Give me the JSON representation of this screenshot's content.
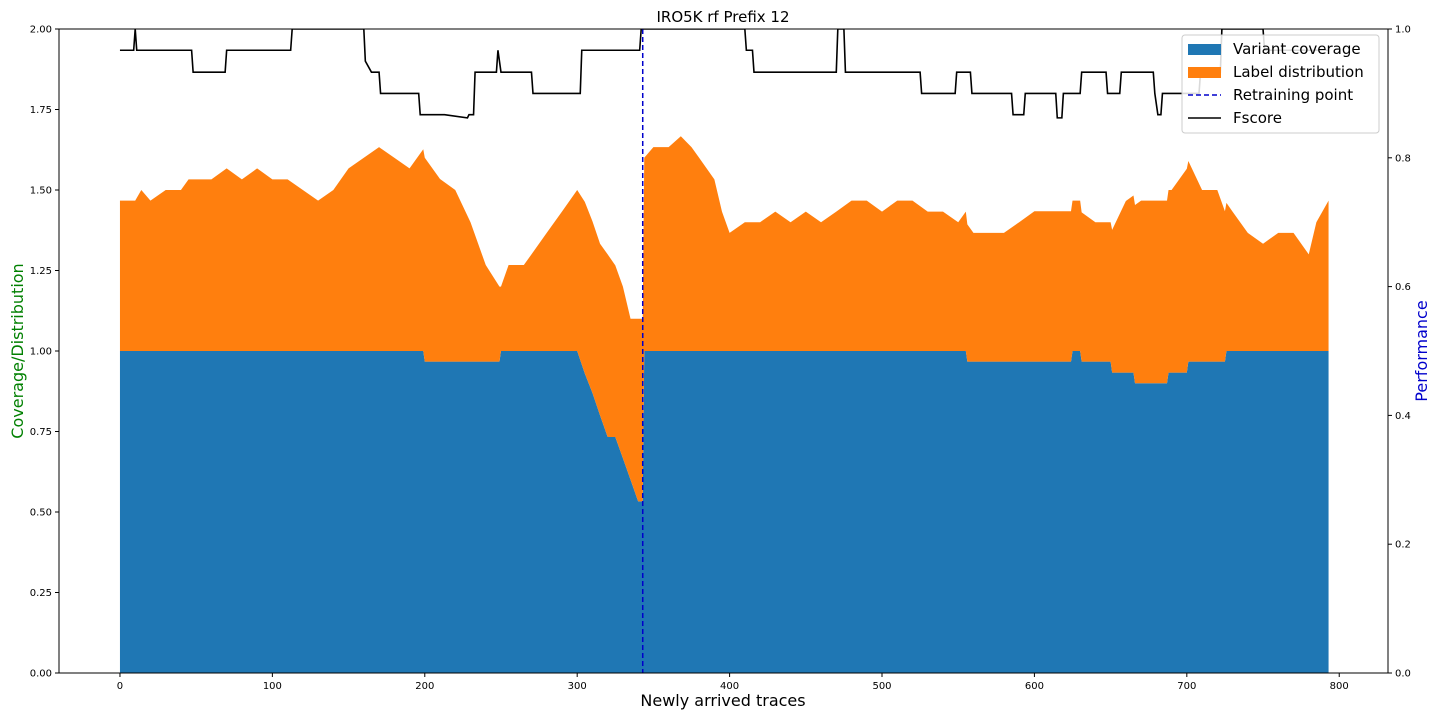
{
  "chart_data": {
    "type": "area",
    "title": "IRO5K rf Prefix 12",
    "xlabel": "Newly arrived traces",
    "ylabel": "Coverage/Distribution",
    "y2label": "Performance",
    "ylabel_color": "#008000",
    "y2label_color": "#0000cc",
    "xlim": [
      -40,
      832
    ],
    "ylim": [
      0,
      2.0
    ],
    "y2lim": [
      0,
      1.0
    ],
    "x_ticks": [
      0,
      100,
      200,
      300,
      400,
      500,
      600,
      700,
      800
    ],
    "y_ticks": [
      "0.00",
      "0.25",
      "0.50",
      "0.75",
      "1.00",
      "1.25",
      "1.50",
      "1.75",
      "2.00"
    ],
    "y2_ticks": [
      "0.0",
      "0.2",
      "0.4",
      "0.6",
      "0.8",
      "1.0"
    ],
    "legend_position": "top-right",
    "retraining_point": 343,
    "series": [
      {
        "name": "Variant coverage",
        "color": "#1f77b4",
        "points": [
          [
            0,
            1.0
          ],
          [
            199,
            1.0
          ],
          [
            200,
            0.967
          ],
          [
            249,
            0.967
          ],
          [
            250,
            1.0
          ],
          [
            300,
            1.0
          ],
          [
            305,
            0.93
          ],
          [
            310,
            0.87
          ],
          [
            315,
            0.8
          ],
          [
            320,
            0.733
          ],
          [
            325,
            0.733
          ],
          [
            330,
            0.667
          ],
          [
            335,
            0.6
          ],
          [
            340,
            0.533
          ],
          [
            343,
            0.533
          ],
          [
            344,
            1.0
          ],
          [
            555,
            1.0
          ],
          [
            556,
            0.967
          ],
          [
            624,
            0.967
          ],
          [
            625,
            1.0
          ],
          [
            630,
            1.0
          ],
          [
            631,
            0.967
          ],
          [
            650,
            0.967
          ],
          [
            651,
            0.933
          ],
          [
            665,
            0.933
          ],
          [
            666,
            0.9
          ],
          [
            687,
            0.9
          ],
          [
            688,
            0.933
          ],
          [
            700,
            0.933
          ],
          [
            701,
            0.967
          ],
          [
            725,
            0.967
          ],
          [
            726,
            1.0
          ],
          [
            793,
            1.0
          ]
        ]
      },
      {
        "name": "Label distribution",
        "color": "#ff7f0e",
        "points": [
          [
            0,
            0.467
          ],
          [
            10,
            0.467
          ],
          [
            14,
            0.5
          ],
          [
            20,
            0.467
          ],
          [
            30,
            0.5
          ],
          [
            40,
            0.5
          ],
          [
            45,
            0.533
          ],
          [
            60,
            0.533
          ],
          [
            70,
            0.567
          ],
          [
            80,
            0.533
          ],
          [
            90,
            0.567
          ],
          [
            100,
            0.533
          ],
          [
            110,
            0.533
          ],
          [
            120,
            0.5
          ],
          [
            130,
            0.467
          ],
          [
            140,
            0.5
          ],
          [
            150,
            0.567
          ],
          [
            160,
            0.6
          ],
          [
            170,
            0.633
          ],
          [
            180,
            0.6
          ],
          [
            190,
            0.567
          ],
          [
            195,
            0.6
          ],
          [
            200,
            0.633
          ],
          [
            210,
            0.567
          ],
          [
            220,
            0.533
          ],
          [
            230,
            0.433
          ],
          [
            240,
            0.3
          ],
          [
            249,
            0.233
          ],
          [
            250,
            0.2
          ],
          [
            255,
            0.267
          ],
          [
            265,
            0.267
          ],
          [
            270,
            0.3
          ],
          [
            280,
            0.367
          ],
          [
            290,
            0.433
          ],
          [
            300,
            0.5
          ],
          [
            305,
            0.533
          ],
          [
            310,
            0.533
          ],
          [
            315,
            0.533
          ],
          [
            320,
            0.567
          ],
          [
            325,
            0.533
          ],
          [
            330,
            0.533
          ],
          [
            335,
            0.5
          ],
          [
            340,
            0.567
          ],
          [
            343,
            0.567
          ],
          [
            344,
            0.6
          ],
          [
            350,
            0.633
          ],
          [
            360,
            0.633
          ],
          [
            368,
            0.667
          ],
          [
            375,
            0.633
          ],
          [
            380,
            0.6
          ],
          [
            390,
            0.533
          ],
          [
            395,
            0.433
          ],
          [
            400,
            0.367
          ],
          [
            410,
            0.4
          ],
          [
            420,
            0.4
          ],
          [
            430,
            0.433
          ],
          [
            440,
            0.4
          ],
          [
            450,
            0.433
          ],
          [
            460,
            0.4
          ],
          [
            470,
            0.433
          ],
          [
            480,
            0.467
          ],
          [
            490,
            0.467
          ],
          [
            500,
            0.433
          ],
          [
            510,
            0.467
          ],
          [
            520,
            0.467
          ],
          [
            530,
            0.433
          ],
          [
            540,
            0.433
          ],
          [
            550,
            0.4
          ],
          [
            555,
            0.433
          ],
          [
            560,
            0.4
          ],
          [
            570,
            0.4
          ],
          [
            580,
            0.4
          ],
          [
            590,
            0.433
          ],
          [
            600,
            0.467
          ],
          [
            610,
            0.467
          ],
          [
            620,
            0.467
          ],
          [
            630,
            0.467
          ],
          [
            640,
            0.433
          ],
          [
            650,
            0.433
          ],
          [
            660,
            0.533
          ],
          [
            670,
            0.567
          ],
          [
            680,
            0.567
          ],
          [
            690,
            0.567
          ],
          [
            700,
            0.633
          ],
          [
            710,
            0.533
          ],
          [
            720,
            0.533
          ],
          [
            725,
            0.467
          ],
          [
            730,
            0.433
          ],
          [
            740,
            0.367
          ],
          [
            750,
            0.333
          ],
          [
            760,
            0.367
          ],
          [
            770,
            0.367
          ],
          [
            780,
            0.3
          ],
          [
            785,
            0.4
          ],
          [
            793,
            0.467
          ]
        ]
      },
      {
        "name": "Retraining point",
        "color": "#0000cc",
        "style": "dashed",
        "x": 343
      },
      {
        "name": "Fscore",
        "color": "#000000",
        "axis": "y2",
        "points": [
          [
            0,
            0.967
          ],
          [
            9,
            0.967
          ],
          [
            10,
            1.0
          ],
          [
            11,
            0.967
          ],
          [
            47,
            0.967
          ],
          [
            48,
            0.933
          ],
          [
            69,
            0.933
          ],
          [
            70,
            0.967
          ],
          [
            112,
            0.967
          ],
          [
            113,
            1.0
          ],
          [
            160,
            1.0
          ],
          [
            161,
            0.95
          ],
          [
            165,
            0.933
          ],
          [
            170,
            0.933
          ],
          [
            171,
            0.9
          ],
          [
            196,
            0.9
          ],
          [
            197,
            0.867
          ],
          [
            212,
            0.867
          ],
          [
            213,
            0.867
          ],
          [
            228,
            0.862
          ],
          [
            229,
            0.867
          ],
          [
            232,
            0.867
          ],
          [
            233,
            0.933
          ],
          [
            247,
            0.933
          ],
          [
            248,
            0.967
          ],
          [
            250,
            0.933
          ],
          [
            270,
            0.933
          ],
          [
            271,
            0.9
          ],
          [
            302,
            0.9
          ],
          [
            303,
            0.967
          ],
          [
            341,
            0.967
          ],
          [
            342,
            1.0
          ],
          [
            410,
            1.0
          ],
          [
            411,
            0.967
          ],
          [
            415,
            0.967
          ],
          [
            416,
            0.933
          ],
          [
            470,
            0.933
          ],
          [
            471,
            1.0
          ],
          [
            475,
            1.0
          ],
          [
            476,
            0.933
          ],
          [
            525,
            0.933
          ],
          [
            526,
            0.9
          ],
          [
            548,
            0.9
          ],
          [
            549,
            0.933
          ],
          [
            558,
            0.933
          ],
          [
            559,
            0.9
          ],
          [
            585,
            0.9
          ],
          [
            586,
            0.867
          ],
          [
            593,
            0.867
          ],
          [
            594,
            0.9
          ],
          [
            610,
            0.9
          ],
          [
            611,
            0.9
          ],
          [
            614,
            0.9
          ],
          [
            615,
            0.862
          ],
          [
            618,
            0.862
          ],
          [
            619,
            0.9
          ],
          [
            630,
            0.9
          ],
          [
            631,
            0.933
          ],
          [
            647,
            0.933
          ],
          [
            648,
            0.9
          ],
          [
            656,
            0.9
          ],
          [
            657,
            0.933
          ],
          [
            678,
            0.933
          ],
          [
            679,
            0.9
          ],
          [
            681,
            0.867
          ],
          [
            683,
            0.867
          ],
          [
            684,
            0.9
          ],
          [
            708,
            0.9
          ],
          [
            709,
            0.933
          ],
          [
            722,
            0.933
          ],
          [
            723,
            1.0
          ],
          [
            750,
            1.0
          ],
          [
            751,
            0.967
          ],
          [
            793,
            0.967
          ]
        ]
      }
    ]
  }
}
